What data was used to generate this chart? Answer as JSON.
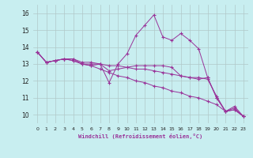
{
  "xlabel": "Windchill (Refroidissement éolien,°C)",
  "bg_color": "#c8eef0",
  "grid_color": "#b0c8c8",
  "line_color": "#993399",
  "xlim_min": -0.5,
  "xlim_max": 23.5,
  "ylim_min": 9.5,
  "ylim_max": 16.5,
  "xticks": [
    0,
    1,
    2,
    3,
    4,
    5,
    6,
    7,
    8,
    9,
    10,
    11,
    12,
    13,
    14,
    15,
    16,
    17,
    18,
    19,
    20,
    21,
    22,
    23
  ],
  "yticks": [
    10,
    11,
    12,
    13,
    14,
    15,
    16
  ],
  "series": [
    [
      13.7,
      13.1,
      13.2,
      13.3,
      13.3,
      13.1,
      13.1,
      13.0,
      11.9,
      13.0,
      13.6,
      14.7,
      15.3,
      15.9,
      14.6,
      14.4,
      14.8,
      14.4,
      13.9,
      12.2,
      11.0,
      10.2,
      10.5,
      9.9
    ],
    [
      13.7,
      13.1,
      13.2,
      13.3,
      13.2,
      13.0,
      13.0,
      13.0,
      12.9,
      12.9,
      12.8,
      12.7,
      12.7,
      12.6,
      12.5,
      12.4,
      12.3,
      12.2,
      12.2,
      12.1,
      11.1,
      10.2,
      10.3,
      9.9
    ],
    [
      13.7,
      13.1,
      13.2,
      13.3,
      13.2,
      13.0,
      12.9,
      12.7,
      12.5,
      12.3,
      12.2,
      12.0,
      11.9,
      11.7,
      11.6,
      11.4,
      11.3,
      11.1,
      11.0,
      10.8,
      10.6,
      10.2,
      10.3,
      9.9
    ],
    [
      13.7,
      13.1,
      13.2,
      13.3,
      13.3,
      13.0,
      12.9,
      13.0,
      12.6,
      12.7,
      12.8,
      12.9,
      12.9,
      12.9,
      12.9,
      12.8,
      12.3,
      12.2,
      12.1,
      12.2,
      11.0,
      10.2,
      10.4,
      9.9
    ]
  ]
}
